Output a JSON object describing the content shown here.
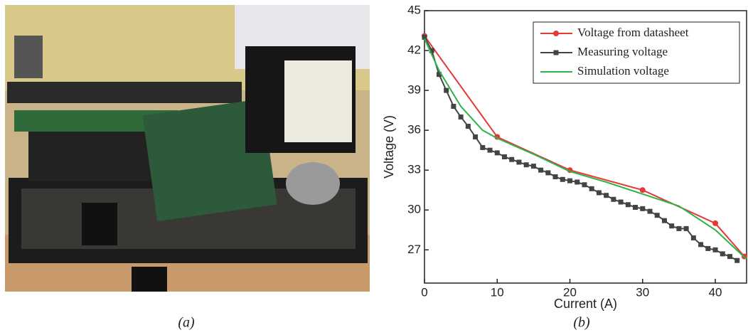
{
  "captions": [
    "(a)",
    "(b)"
  ],
  "chart_data": {
    "type": "line",
    "xlabel": "Current (A)",
    "ylabel": "Voltage (V)",
    "xlim": [
      0,
      44.3
    ],
    "ylim": [
      24.5,
      45
    ],
    "xticks": [
      0,
      10,
      20,
      30,
      40
    ],
    "yticks": [
      27,
      30,
      33,
      36,
      39,
      42,
      45
    ],
    "legend": "upper right",
    "series": [
      {
        "name": "Voltage from datasheet",
        "color": "#e53935",
        "marker": "circle",
        "x": [
          0,
          10,
          20,
          30,
          40,
          44
        ],
        "values": [
          43.1,
          35.5,
          33,
          31.5,
          29,
          26.5
        ]
      },
      {
        "name": "Measuring voltage",
        "color": "#444444",
        "marker": "square",
        "x": [
          0,
          1,
          2,
          3,
          4,
          5,
          6,
          7,
          8,
          9,
          10,
          11,
          12,
          13,
          14,
          15,
          16,
          17,
          18,
          19,
          20,
          21,
          22,
          23,
          24,
          25,
          26,
          27,
          28,
          29,
          30,
          31,
          32,
          33,
          34,
          35,
          36,
          37,
          38,
          39,
          40,
          41,
          42,
          43
        ],
        "values": [
          43.0,
          42.0,
          40.2,
          39.0,
          37.8,
          37.0,
          36.3,
          35.5,
          34.7,
          34.5,
          34.3,
          34.0,
          33.8,
          33.6,
          33.4,
          33.3,
          33.0,
          32.8,
          32.5,
          32.3,
          32.2,
          32.1,
          31.9,
          31.6,
          31.3,
          31.1,
          30.8,
          30.6,
          30.4,
          30.2,
          30.1,
          29.9,
          29.6,
          29.2,
          28.8,
          28.6,
          28.6,
          27.9,
          27.4,
          27.1,
          27.0,
          26.7,
          26.5,
          26.2
        ]
      },
      {
        "name": "Simulation voltage",
        "color": "#2db34a",
        "marker": null,
        "x": [
          0,
          2,
          5,
          8,
          10,
          15,
          20,
          25,
          30,
          35,
          40,
          44.3
        ],
        "values": [
          42.9,
          40.5,
          37.8,
          36.0,
          35.4,
          34.2,
          32.9,
          32.1,
          31.2,
          30.3,
          28.5,
          26.3
        ]
      }
    ]
  }
}
